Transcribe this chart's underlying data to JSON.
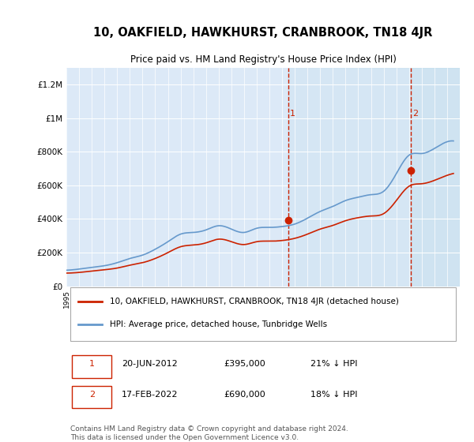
{
  "title": "10, OAKFIELD, HAWKHURST, CRANBROOK, TN18 4JR",
  "subtitle": "Price paid vs. HM Land Registry's House Price Index (HPI)",
  "background_color": "#dce9f7",
  "plot_bg_color": "#dce9f7",
  "hpi_color": "#6699cc",
  "price_color": "#cc2200",
  "dashed_line_color": "#cc2200",
  "ylim": [
    0,
    1300000
  ],
  "yticks": [
    0,
    200000,
    400000,
    600000,
    800000,
    1000000,
    1200000
  ],
  "ylabel_labels": [
    "£0",
    "£200K",
    "£400K",
    "£600K",
    "£800K",
    "£1M",
    "£1.2M"
  ],
  "xstart_year": 1995,
  "xend_year": 2026,
  "transaction1": {
    "date": "2012-06-20",
    "price": 395000,
    "label": "1"
  },
  "transaction2": {
    "date": "2022-02-17",
    "price": 690000,
    "label": "2"
  },
  "legend_line1": "10, OAKFIELD, HAWKHURST, CRANBROOK, TN18 4JR (detached house)",
  "legend_line2": "HPI: Average price, detached house, Tunbridge Wells",
  "table_row1": [
    "1",
    "20-JUN-2012",
    "£395,000",
    "21% ↓ HPI"
  ],
  "table_row2": [
    "2",
    "17-FEB-2022",
    "£690,000",
    "18% ↓ HPI"
  ],
  "footnote": "Contains HM Land Registry data © Crown copyright and database right 2024.\nThis data is licensed under the Open Government Licence v3.0.",
  "hpi_data": {
    "years": [
      1995,
      1996,
      1997,
      1998,
      1999,
      2000,
      2001,
      2002,
      2003,
      2004,
      2005,
      2006,
      2007,
      2008,
      2009,
      2010,
      2011,
      2012,
      2013,
      2014,
      2015,
      2016,
      2017,
      2018,
      2019,
      2020,
      2021,
      2022,
      2023,
      2024,
      2025
    ],
    "values": [
      95000,
      102000,
      112000,
      122000,
      140000,
      165000,
      185000,
      220000,
      265000,
      310000,
      320000,
      335000,
      360000,
      340000,
      320000,
      345000,
      350000,
      355000,
      370000,
      405000,
      445000,
      475000,
      510000,
      530000,
      545000,
      565000,
      670000,
      780000,
      790000,
      820000,
      860000
    ]
  },
  "price_data": {
    "years": [
      1995,
      1996,
      1997,
      1998,
      1999,
      2000,
      2001,
      2002,
      2003,
      2004,
      2005,
      2006,
      2007,
      2008,
      2009,
      2010,
      2011,
      2012,
      2013,
      2014,
      2015,
      2016,
      2017,
      2018,
      2019,
      2020,
      2021,
      2022,
      2023,
      2024,
      2025
    ],
    "values": [
      78000,
      82000,
      90000,
      98000,
      108000,
      125000,
      140000,
      165000,
      200000,
      235000,
      245000,
      258000,
      280000,
      265000,
      248000,
      265000,
      268000,
      272000,
      285000,
      310000,
      340000,
      362000,
      390000,
      408000,
      418000,
      432000,
      510000,
      595000,
      610000,
      630000,
      660000
    ]
  }
}
